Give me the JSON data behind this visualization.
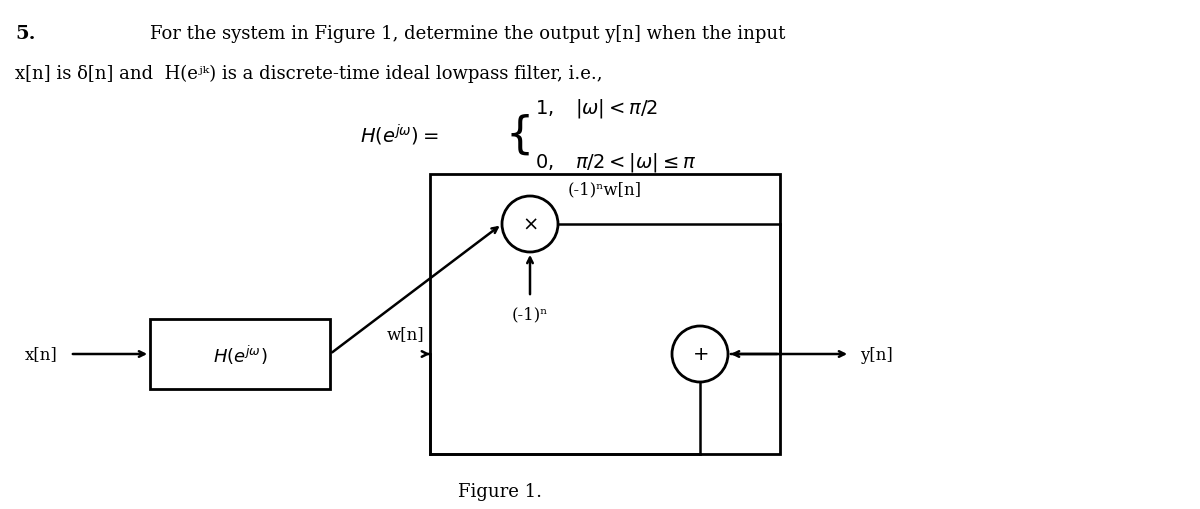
{
  "fig_width": 12.0,
  "fig_height": 5.1,
  "dpi": 100,
  "bg_color": "#ffffff",
  "title_number": "5.",
  "line1": "For the system in Figure 1, determine the output y[n] when the input",
  "line2": "x[n] is δ[n] and  H(eʲᵏ) is a discrete-time ideal lowpass filter, i.e.,",
  "H_label": "H(eʲᵏ) =",
  "H_case1": "1,    |ω| < π/2",
  "H_case2": "0,    π/2 < |ω| ≤ π",
  "figure_caption": "Figure 1.",
  "block_H_label": "H(eʲᵏ)",
  "label_xn": "x[n]",
  "label_wn": "w[n]",
  "label_minus1n": "(-1)ⁿ",
  "label_minus1n_wn": "(-1)ⁿw[n]",
  "label_yn": "y[n]",
  "multiply_symbol": "×",
  "add_symbol": "+"
}
